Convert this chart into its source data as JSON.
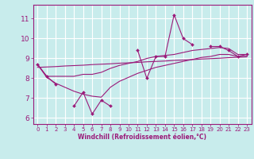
{
  "title": "",
  "xlabel": "Windchill (Refroidissement éolien,°C)",
  "ylabel": "",
  "x": [
    0,
    1,
    2,
    3,
    4,
    5,
    6,
    7,
    8,
    9,
    10,
    11,
    12,
    13,
    14,
    15,
    16,
    17,
    18,
    19,
    20,
    21,
    22,
    23
  ],
  "y_main": [
    8.7,
    8.1,
    7.7,
    null,
    6.6,
    7.3,
    6.2,
    6.9,
    6.6,
    null,
    null,
    9.4,
    8.0,
    9.1,
    9.1,
    11.2,
    10.0,
    9.7,
    null,
    9.6,
    9.6,
    9.4,
    9.1,
    9.2
  ],
  "y_upper": [
    8.7,
    8.1,
    8.1,
    8.1,
    8.1,
    8.2,
    8.2,
    8.3,
    8.5,
    8.65,
    8.75,
    8.85,
    9.0,
    9.1,
    9.15,
    9.2,
    9.3,
    9.4,
    9.45,
    9.5,
    9.55,
    9.5,
    9.2,
    9.2
  ],
  "y_lower": [
    8.7,
    8.05,
    7.75,
    7.55,
    7.35,
    7.2,
    7.1,
    7.05,
    7.55,
    7.85,
    8.05,
    8.25,
    8.4,
    8.55,
    8.65,
    8.75,
    8.85,
    8.95,
    9.05,
    9.1,
    9.2,
    9.2,
    9.1,
    9.1
  ],
  "y_trend": [
    8.55,
    8.57,
    8.59,
    8.62,
    8.64,
    8.66,
    8.69,
    8.71,
    8.73,
    8.76,
    8.78,
    8.8,
    8.83,
    8.85,
    8.87,
    8.9,
    8.92,
    8.94,
    8.97,
    8.99,
    9.01,
    9.04,
    9.06,
    9.08
  ],
  "ylim": [
    5.7,
    11.7
  ],
  "yticks": [
    6,
    7,
    8,
    9,
    10,
    11
  ],
  "xticks": [
    0,
    1,
    2,
    3,
    4,
    5,
    6,
    7,
    8,
    9,
    10,
    11,
    12,
    13,
    14,
    15,
    16,
    17,
    18,
    19,
    20,
    21,
    22,
    23
  ],
  "line_color": "#9b1a7a",
  "bg_color": "#c8ecec",
  "grid_color": "#ffffff",
  "axes_color": "#9b1a7a",
  "tick_label_color": "#9b1a7a",
  "xlabel_color": "#9b1a7a",
  "figsize": [
    3.2,
    2.0
  ],
  "dpi": 100
}
